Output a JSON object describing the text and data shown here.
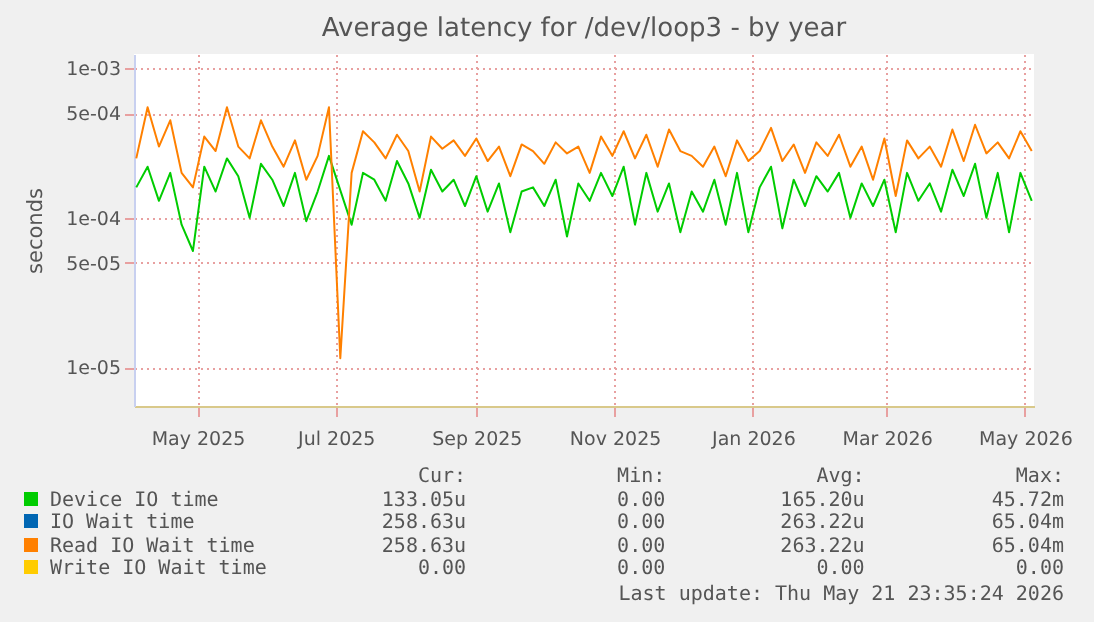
{
  "chart_data": {
    "type": "line",
    "title": "Average latency for /dev/loop3 - by year",
    "ylabel": "seconds",
    "log": true,
    "grid": true,
    "legend": "bottom",
    "x": [
      "2025-04-04",
      "2025-04-09",
      "2025-04-14",
      "2025-04-19",
      "2025-04-24",
      "2025-04-29",
      "2025-05-04",
      "2025-05-09",
      "2025-05-14",
      "2025-05-19",
      "2025-05-24",
      "2025-05-29",
      "2025-06-03",
      "2025-06-08",
      "2025-06-13",
      "2025-06-18",
      "2025-06-23",
      "2025-06-28",
      "2025-07-03",
      "2025-07-08",
      "2025-07-13",
      "2025-07-18",
      "2025-07-23",
      "2025-07-28",
      "2025-08-02",
      "2025-08-07",
      "2025-08-12",
      "2025-08-17",
      "2025-08-22",
      "2025-08-27",
      "2025-09-01",
      "2025-09-06",
      "2025-09-11",
      "2025-09-16",
      "2025-09-21",
      "2025-09-26",
      "2025-10-01",
      "2025-10-06",
      "2025-10-11",
      "2025-10-16",
      "2025-10-21",
      "2025-10-26",
      "2025-10-31",
      "2025-11-05",
      "2025-11-10",
      "2025-11-15",
      "2025-11-20",
      "2025-11-25",
      "2025-11-30",
      "2025-12-05",
      "2025-12-10",
      "2025-12-15",
      "2025-12-20",
      "2025-12-25",
      "2025-12-30",
      "2026-01-04",
      "2026-01-09",
      "2026-01-14",
      "2026-01-19",
      "2026-01-24",
      "2026-01-29",
      "2026-02-03",
      "2026-02-08",
      "2026-02-13",
      "2026-02-18",
      "2026-02-23",
      "2026-02-28",
      "2026-03-05",
      "2026-03-10",
      "2026-03-15",
      "2026-03-20",
      "2026-03-25",
      "2026-03-30",
      "2026-04-04",
      "2026-04-09",
      "2026-04-14",
      "2026-04-19",
      "2026-04-24",
      "2026-04-29",
      "2026-05-04"
    ],
    "xlim": [
      "2025-04-03",
      "2026-05-05"
    ],
    "xticks": [
      {
        "value": "2025-05",
        "label": "May 2025"
      },
      {
        "value": "2025-07",
        "label": "Jul 2025"
      },
      {
        "value": "2025-09",
        "label": "Sep 2025"
      },
      {
        "value": "2025-11",
        "label": "Nov 2025"
      },
      {
        "value": "2026-01",
        "label": "Jan 2026"
      },
      {
        "value": "2026-03",
        "label": "Mar 2026"
      },
      {
        "value": "2026-05",
        "label": "May 2026"
      }
    ],
    "ylim": [
      5.5e-06,
      0.00125
    ],
    "yticks": [
      {
        "value": 1e-05,
        "label": "1e-05"
      },
      {
        "value": 5e-05,
        "label": "5e-05"
      },
      {
        "value": 0.0001,
        "label": "1e-04"
      },
      {
        "value": 0.0005,
        "label": "5e-04"
      },
      {
        "value": 0.001,
        "label": "1e-03"
      }
    ],
    "series": [
      {
        "name": "Device IO time",
        "color": "#00cc00",
        "values": [
          0.00016,
          0.00022,
          0.00013,
          0.0002,
          9e-05,
          6e-05,
          0.00022,
          0.00015,
          0.00025,
          0.00019,
          0.0001,
          0.00023,
          0.00018,
          0.00012,
          0.0002,
          9.5e-05,
          0.00015,
          0.00026,
          null,
          9e-05,
          0.0002,
          0.00018,
          0.00013,
          0.00024,
          0.00017,
          0.0001,
          0.00021,
          0.00015,
          0.00018,
          0.00012,
          0.00019,
          0.00011,
          0.00017,
          8e-05,
          0.00015,
          0.00016,
          0.00012,
          0.00018,
          7.5e-05,
          0.00017,
          0.00013,
          0.0002,
          0.00014,
          0.00022,
          9e-05,
          0.0002,
          0.00011,
          0.00017,
          8e-05,
          0.00015,
          0.00011,
          0.00018,
          9e-05,
          0.0002,
          8e-05,
          0.00016,
          0.00022,
          8.5e-05,
          0.00018,
          0.00012,
          0.00019,
          0.00015,
          0.0002,
          0.0001,
          0.00017,
          0.00012,
          0.00018,
          8e-05,
          0.0002,
          0.00013,
          0.00017,
          0.00011,
          0.00021,
          0.00014,
          0.00023,
          0.0001,
          0.0002,
          8e-05,
          0.0002,
          0.00013
        ]
      },
      {
        "name": "IO Wait time",
        "color": "#0066b3",
        "values": [
          null,
          null,
          null,
          null,
          null,
          null,
          null,
          null,
          null,
          null,
          null,
          null,
          null,
          null,
          null,
          null,
          null,
          null,
          null,
          null,
          null,
          null,
          null,
          null,
          null,
          null,
          null,
          null,
          null,
          null,
          null,
          null,
          null,
          null,
          null,
          null,
          null,
          null,
          null,
          null,
          null,
          null,
          null,
          null,
          null,
          null,
          null,
          null,
          null,
          null,
          null,
          null,
          null,
          null,
          null,
          null,
          null,
          null,
          null,
          null,
          null,
          null,
          null,
          null,
          null,
          null,
          null,
          null,
          null,
          null,
          null,
          null,
          null,
          null,
          null,
          null,
          null,
          null,
          null,
          null
        ]
      },
      {
        "name": "Read IO Wait time",
        "color": "#ff8000",
        "values": [
          0.00025,
          0.00055,
          0.0003,
          0.00045,
          0.0002,
          0.00016,
          0.00035,
          0.00028,
          0.00055,
          0.0003,
          0.00025,
          0.00045,
          0.0003,
          0.00022,
          0.00033,
          0.00018,
          0.00026,
          0.00055,
          1.15e-05,
          0.0002,
          0.00038,
          0.00032,
          0.00025,
          0.00036,
          0.00028,
          0.00015,
          0.00035,
          0.00029,
          0.00033,
          0.00026,
          0.00034,
          0.00024,
          0.0003,
          0.00019,
          0.00031,
          0.00028,
          0.00023,
          0.00032,
          0.00027,
          0.0003,
          0.0002,
          0.00035,
          0.00026,
          0.00038,
          0.00025,
          0.00036,
          0.00022,
          0.00039,
          0.00028,
          0.00026,
          0.00022,
          0.0003,
          0.00019,
          0.00033,
          0.00024,
          0.00028,
          0.0004,
          0.00024,
          0.00031,
          0.0002,
          0.00032,
          0.00026,
          0.00036,
          0.00022,
          0.0003,
          0.00018,
          0.00034,
          0.00014,
          0.00033,
          0.00025,
          0.0003,
          0.00022,
          0.00039,
          0.00024,
          0.00042,
          0.00027,
          0.00032,
          0.00025,
          0.00038,
          0.00028
        ]
      },
      {
        "name": "Write IO Wait time",
        "color": "#ffcc00",
        "values": [
          null,
          null,
          null,
          null,
          null,
          null,
          null,
          null,
          null,
          null,
          null,
          null,
          null,
          null,
          null,
          null,
          null,
          null,
          null,
          null,
          null,
          null,
          null,
          null,
          null,
          null,
          null,
          null,
          null,
          null,
          null,
          null,
          null,
          null,
          null,
          null,
          null,
          null,
          null,
          null,
          null,
          null,
          null,
          null,
          null,
          null,
          null,
          null,
          null,
          null,
          null,
          null,
          null,
          null,
          null,
          null,
          null,
          null,
          null,
          null,
          null,
          null,
          null,
          null,
          null,
          null,
          null,
          null,
          null,
          null,
          null,
          null,
          null,
          null,
          null,
          null,
          null,
          null,
          null,
          null
        ]
      }
    ],
    "annotations": [
      "Cur:",
      "Min:",
      "Avg:",
      "Max:",
      "133.05u",
      "0.00",
      "165.20u",
      "45.72m",
      "258.63u",
      "0.00",
      "263.22u",
      "65.04m",
      "258.63u",
      "0.00",
      "263.22u",
      "65.04m",
      "0.00",
      "0.00",
      "0.00",
      "0.00",
      "Last update: Thu May 21 23:35:24 2026"
    ]
  }
}
